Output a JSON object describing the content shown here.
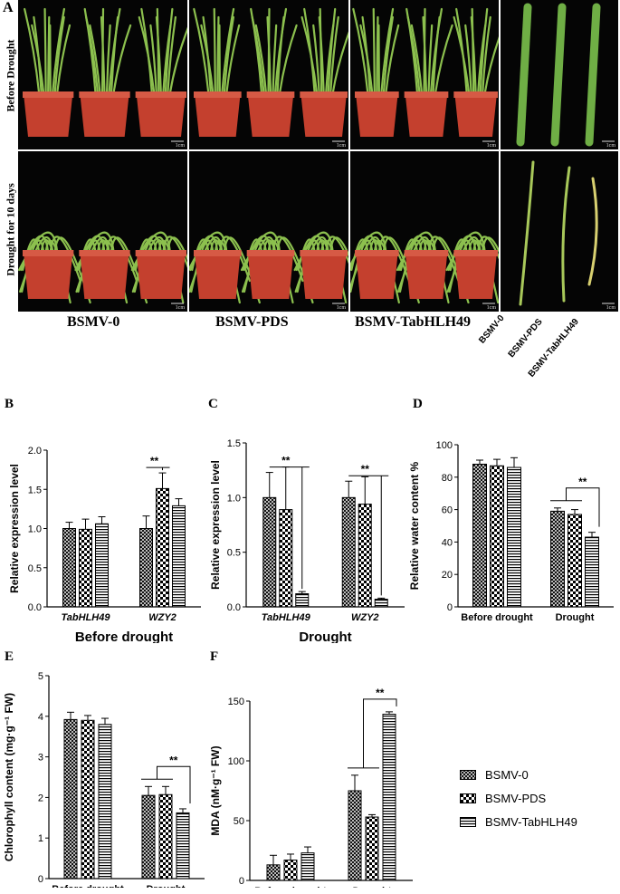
{
  "panel_a": {
    "label": "A",
    "rows": [
      "Before Drought",
      "Drought for 10 days"
    ],
    "columns": [
      "BSMV-0",
      "BSMV-PDS",
      "BSMV-TabHLH49"
    ],
    "leaf_labels": [
      "BSMV-0",
      "BSMV-PDS",
      "BSMV-TabHLH49"
    ],
    "scale": "1cm"
  },
  "legend": [
    "BSMV-0",
    "BSMV-PDS",
    "BSMV-TabHLH49"
  ],
  "colors": {
    "pot": "#c4402e",
    "leaf": "#8cc04e",
    "photo_bg": "#050505"
  },
  "chart_data": [
    {
      "panel": "B",
      "type": "bar",
      "categories": [
        "TabHLH49",
        "WZY2"
      ],
      "series": [
        {
          "name": "BSMV-0",
          "values": [
            1.0,
            1.0
          ],
          "errors": [
            0.08,
            0.16
          ]
        },
        {
          "name": "BSMV-PDS",
          "values": [
            0.99,
            1.51
          ],
          "errors": [
            0.13,
            0.2
          ]
        },
        {
          "name": "BSMV-TabHLH49",
          "values": [
            1.06,
            1.29
          ],
          "errors": [
            0.09,
            0.09
          ]
        }
      ],
      "xlabel": "Before drought",
      "ylabel": "Relative expression level",
      "ylim": [
        0,
        2.0
      ],
      "ticks": [
        "0.0",
        "0.5",
        "1.0",
        "1.5",
        "2.0"
      ],
      "significance": [
        {
          "category": 1,
          "from": 0,
          "to": 1,
          "label": "**"
        }
      ]
    },
    {
      "panel": "C",
      "type": "bar",
      "categories": [
        "TabHLH49",
        "WZY2"
      ],
      "series": [
        {
          "name": "BSMV-0",
          "values": [
            1.0,
            1.0
          ],
          "errors": [
            0.23,
            0.15
          ]
        },
        {
          "name": "BSMV-PDS",
          "values": [
            0.89,
            0.94
          ],
          "errors": [
            0.39,
            0.25
          ]
        },
        {
          "name": "BSMV-TabHLH49",
          "values": [
            0.12,
            0.07
          ],
          "errors": [
            0.02,
            0.01
          ]
        }
      ],
      "xlabel": "Drought",
      "ylabel": "Relative expression level",
      "ylim": [
        0,
        1.5
      ],
      "ticks": [
        "0.0",
        "0.5",
        "1.0",
        "1.5"
      ],
      "significance": [
        {
          "category": 0,
          "from": 0,
          "to": 2,
          "label": "**"
        },
        {
          "category": 1,
          "from": 0,
          "to": 2,
          "label": "**"
        }
      ]
    },
    {
      "panel": "D",
      "type": "bar",
      "categories": [
        "Before drought",
        "Drought"
      ],
      "series": [
        {
          "name": "BSMV-0",
          "values": [
            88,
            59
          ],
          "errors": [
            2.5,
            2
          ]
        },
        {
          "name": "BSMV-PDS",
          "values": [
            87,
            57
          ],
          "errors": [
            4,
            3
          ]
        },
        {
          "name": "BSMV-TabHLH49",
          "values": [
            86,
            43
          ],
          "errors": [
            6,
            3
          ]
        }
      ],
      "ylabel": "Relative water content %",
      "ylim": [
        0,
        100
      ],
      "ticks": [
        "0",
        "20",
        "40",
        "60",
        "80",
        "100"
      ],
      "significance": [
        {
          "category": 1,
          "group": [
            0,
            1
          ],
          "to": 2,
          "label": "**"
        }
      ]
    },
    {
      "panel": "E",
      "type": "bar",
      "categories": [
        "Before drought",
        "Drought"
      ],
      "series": [
        {
          "name": "BSMV-0",
          "values": [
            3.92,
            2.05
          ],
          "errors": [
            0.18,
            0.22
          ]
        },
        {
          "name": "BSMV-PDS",
          "values": [
            3.9,
            2.07
          ],
          "errors": [
            0.12,
            0.2
          ]
        },
        {
          "name": "BSMV-TabHLH49",
          "values": [
            3.8,
            1.62
          ],
          "errors": [
            0.15,
            0.1
          ]
        }
      ],
      "ylabel": "Chlorophyll content (mg·g⁻¹ FW)",
      "ylim": [
        0,
        5
      ],
      "ticks": [
        "0",
        "1",
        "2",
        "3",
        "4",
        "5"
      ],
      "significance": [
        {
          "category": 1,
          "group": [
            0,
            1
          ],
          "to": 2,
          "label": "**"
        }
      ]
    },
    {
      "panel": "F",
      "type": "bar",
      "categories": [
        "Before drought",
        "Drought"
      ],
      "series": [
        {
          "name": "BSMV-0",
          "values": [
            13,
            75
          ],
          "errors": [
            8,
            13
          ]
        },
        {
          "name": "BSMV-PDS",
          "values": [
            17,
            53
          ],
          "errors": [
            5,
            2
          ]
        },
        {
          "name": "BSMV-TabHLH49",
          "values": [
            23,
            139
          ],
          "errors": [
            5,
            2
          ]
        }
      ],
      "ylabel": "MDA (nM·g⁻¹ FW)",
      "ylim": [
        0,
        150
      ],
      "ticks": [
        "0",
        "50",
        "100",
        "150"
      ],
      "significance": [
        {
          "category": 1,
          "group": [
            0,
            1
          ],
          "to": 2,
          "label": "**"
        }
      ]
    }
  ]
}
